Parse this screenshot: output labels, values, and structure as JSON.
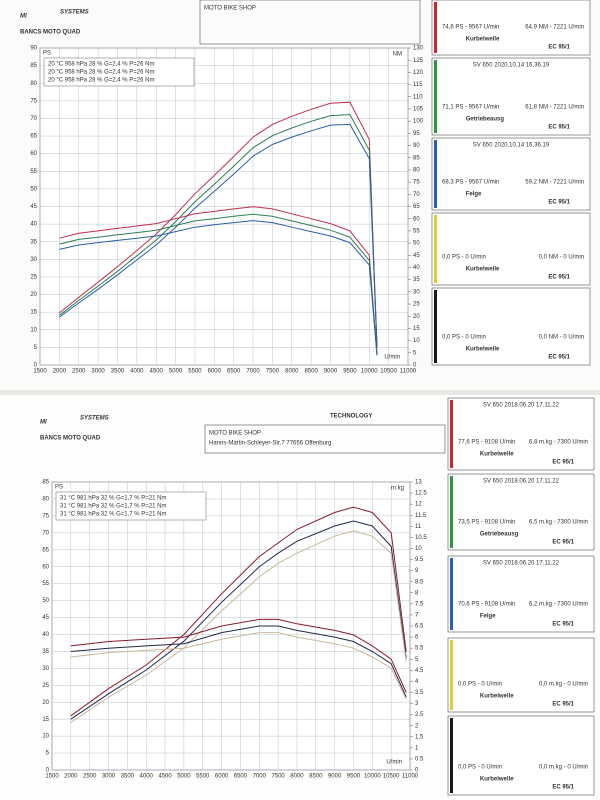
{
  "sheets": [
    {
      "logo": {
        "brand": "SYSTEMS",
        "tagline": "BANCS MOTO QUAD"
      },
      "header": {
        "shop": "MOTO BIKE SHOP"
      },
      "legend_rows": [
        "20 °C  958 hPa  28 %  G=2,4 %  P=26 Nm",
        "20 °C  958 hPa  28 %  G=2,4 %  P=26 Nm",
        "20 °C  958 hPa  28 %  G=2,4 %  P=26 Nm"
      ],
      "panels": [
        {
          "color": "#d0242c",
          "stats": [
            "74,6 PS - 9567 U/min",
            "64,9 NM - 7221 U/min"
          ],
          "position": "Kurbelwelle",
          "fuel": "EC 95/1"
        },
        {
          "color": "#2e9a3c",
          "title": "SV 650   2020.10.14 16.36.19",
          "stats": [
            "71,1 PS - 9567 U/min",
            "61,8 NM - 7221 U/min"
          ],
          "position": "Getriebeausg",
          "fuel": "EC 95/1"
        },
        {
          "color": "#2a5fb8",
          "title": "SV 650   2020.10.14 16.36.19",
          "stats": [
            "68,3 PS - 9567 U/min",
            "59,2 NM - 7221 U/min"
          ],
          "position": "Felge",
          "fuel": "EC 95/1"
        },
        {
          "color": "#e8c830",
          "stats": [
            "0,0 PS - 0 U/min",
            "0,0 NM - 0 U/min"
          ],
          "position": "Kurbelwelle",
          "fuel": "EC 95/1"
        },
        {
          "color": "#1a1a1a",
          "stats": [
            "0,0 PS - 0 U/min",
            "0,0 NM - 0 U/min"
          ],
          "position": "Kurbelwelle",
          "fuel": "EC 95/1"
        }
      ]
    },
    {
      "logo": {
        "brand": "SYSTEMS",
        "tagline": "BANCS MOTO QUAD",
        "badge": "TECHNOLOGY"
      },
      "header": {
        "shop": "MOTO BIKE SHOP",
        "address": "Hanns-Martin-Schleyer-Str.7  77656 Offenburg"
      },
      "legend_rows": [
        "31 °C  981 hPa  32 %  G=1,7 %  P=21 Nm",
        "31 °C  981 hPa  32 %  G=1,7 %  P=21 Nm",
        "31 °C  981 hPa  32 %  G=1,7 %  P=21 Nm"
      ],
      "panels": [
        {
          "color": "#d0242c",
          "title": "SV 650   2018.06.20 17.11.22",
          "stats": [
            "77,6 PS - 9108 U/min",
            "6,8 m.kg - 7300 U/min"
          ],
          "position": "Kurbelwelle",
          "fuel": "EC 95/1"
        },
        {
          "color": "#2e9a3c",
          "title": "SV 650   2018.06.20 17.11.22",
          "stats": [
            "73,5 PS - 9108 U/min",
            "6,5 m.kg - 7300 U/min"
          ],
          "position": "Getriebeausg",
          "fuel": "EC 95/1"
        },
        {
          "color": "#2a5fb8",
          "title": "SV 650   2018.06.20 17.11.22",
          "stats": [
            "70,6 PS - 9108 U/min",
            "6,2 m.kg - 7300 U/min"
          ],
          "position": "Felge",
          "fuel": "EC 95/1"
        },
        {
          "color": "#e8c830",
          "stats": [
            "0,0 PS - 0 U/min",
            "0,0 m.kg - 0 U/min"
          ],
          "position": "Kurbelwelle",
          "fuel": "EC 95/1"
        },
        {
          "color": "#1a1a1a",
          "stats": [
            "0,0 PS - 0 U/min",
            "0,0 m.kg - 0 U/min"
          ],
          "position": "Kurbelwelle",
          "fuel": "EC 95/1"
        }
      ]
    }
  ],
  "chart_data": [
    {
      "type": "line",
      "y_label": "PS",
      "y2_label": "NM",
      "x_label": "U/min",
      "grid": true,
      "x": [
        2000,
        2500,
        3000,
        3500,
        4000,
        4500,
        5000,
        5500,
        6000,
        6500,
        7000,
        7500,
        8000,
        8500,
        9000,
        9500,
        10000,
        10200
      ],
      "xlim": [
        1500,
        11000
      ],
      "xticks": [
        1500,
        2000,
        2500,
        3000,
        3500,
        4000,
        4500,
        5000,
        5500,
        6000,
        6500,
        7000,
        7500,
        8000,
        8500,
        9000,
        9500,
        10000,
        10500,
        11000
      ],
      "ylim": [
        0,
        90
      ],
      "yticks": [
        0,
        5,
        10,
        15,
        20,
        25,
        30,
        35,
        40,
        45,
        50,
        55,
        60,
        65,
        70,
        75,
        80,
        85,
        90
      ],
      "y2lim": [
        0,
        130
      ],
      "y2ticks": [
        0,
        5,
        10,
        15,
        20,
        25,
        30,
        35,
        40,
        45,
        50,
        55,
        60,
        65,
        70,
        75,
        80,
        85,
        90,
        95,
        100,
        105,
        110,
        115,
        120,
        125,
        130
      ],
      "series": [
        {
          "name": "Kurbelwelle PS",
          "color": "#c0304a",
          "values": [
            14.8,
            19.2,
            23.5,
            27.9,
            32.5,
            37.2,
            42.7,
            48.6,
            53.8,
            59.2,
            64.7,
            68.3,
            70.6,
            72.6,
            74.3,
            74.6,
            64,
            5
          ]
        },
        {
          "name": "Getriebeausg PS",
          "color": "#2e7d4f",
          "values": [
            14.1,
            18.3,
            22.4,
            26.6,
            31,
            35.5,
            40.7,
            46.3,
            51.3,
            56.4,
            61.7,
            65.1,
            67.3,
            69.2,
            70.8,
            71.1,
            61,
            5
          ]
        },
        {
          "name": "Felge PS",
          "color": "#2a5fa8",
          "values": [
            13.6,
            17.6,
            21.5,
            25.6,
            29.8,
            34.1,
            39.1,
            44.5,
            49.3,
            54.2,
            59.3,
            62.6,
            64.7,
            66.5,
            68.1,
            68.3,
            58.6,
            5
          ]
        },
        {
          "name": "Kurbelwelle NM",
          "color": "#c0304a",
          "axis": "y2",
          "values": [
            52,
            54,
            55,
            56,
            57,
            58,
            60,
            62,
            63,
            64,
            64.9,
            64,
            62,
            60,
            58,
            55,
            45,
            4
          ]
        },
        {
          "name": "Getriebeausg NM",
          "color": "#2e7d4f",
          "axis": "y2",
          "values": [
            49.6,
            51.5,
            52.4,
            53.4,
            54.3,
            55.3,
            57.2,
            59.1,
            60,
            61,
            61.8,
            61,
            59.1,
            57.2,
            55.3,
            52.4,
            42.9,
            4
          ]
        },
        {
          "name": "Felge NM",
          "color": "#2a5fa8",
          "axis": "y2",
          "values": [
            47.4,
            49.2,
            50.2,
            51.1,
            52,
            52.9,
            54.7,
            56.5,
            57.5,
            58.4,
            59.2,
            58.4,
            56.5,
            54.7,
            52.9,
            50.2,
            41,
            4
          ]
        }
      ]
    },
    {
      "type": "line",
      "y_label": "PS",
      "y2_label": "m.kg",
      "x_label": "U/min",
      "grid": true,
      "x": [
        2000,
        3000,
        4000,
        5000,
        6000,
        7000,
        7500,
        8000,
        9000,
        9500,
        10000,
        10500,
        10900
      ],
      "xlim": [
        1500,
        11000
      ],
      "xticks": [
        1500,
        2000,
        2500,
        3000,
        3500,
        4000,
        4500,
        5000,
        5500,
        6000,
        6500,
        7000,
        7500,
        8000,
        8500,
        9000,
        9500,
        10000,
        10500,
        11000
      ],
      "ylim": [
        0,
        85
      ],
      "yticks": [
        0,
        5,
        10,
        15,
        20,
        25,
        30,
        35,
        40,
        45,
        50,
        55,
        60,
        65,
        70,
        75,
        80,
        85
      ],
      "y2lim": [
        0,
        13
      ],
      "y2ticks": [
        0,
        0.5,
        1,
        1.5,
        2,
        2.5,
        3,
        3.5,
        4,
        4.5,
        5,
        5.5,
        6,
        6.5,
        7,
        7.5,
        8,
        8.5,
        9,
        9.5,
        10,
        10.5,
        11,
        11.5,
        12,
        12.5,
        13
      ],
      "series": [
        {
          "name": "Kurbelwelle PS",
          "color": "#8b1a2b",
          "values": [
            16,
            24,
            31,
            40,
            52,
            63,
            67,
            71,
            76,
            77.6,
            76,
            70,
            35
          ]
        },
        {
          "name": "Getriebeausg PS",
          "color": "#1f2a4a",
          "values": [
            15,
            22.5,
            29.5,
            38,
            49.5,
            60,
            64,
            67.5,
            72,
            73.5,
            72,
            66,
            33
          ]
        },
        {
          "name": "Felge PS",
          "color": "#c9b79a",
          "values": [
            14,
            21.5,
            28,
            36,
            47,
            57,
            61,
            64,
            69,
            70.6,
            69,
            64,
            32
          ]
        },
        {
          "name": "Kurbelwelle m.kg",
          "color": "#8b1a2b",
          "axis": "y2",
          "values": [
            5.6,
            5.8,
            5.9,
            6,
            6.5,
            6.8,
            6.8,
            6.6,
            6.3,
            6.1,
            5.6,
            5,
            3.5
          ]
        },
        {
          "name": "Getriebeausg m.kg",
          "color": "#1f2a4a",
          "axis": "y2",
          "values": [
            5.35,
            5.5,
            5.6,
            5.7,
            6.2,
            6.5,
            6.5,
            6.3,
            6,
            5.8,
            5.35,
            4.8,
            3.3
          ]
        },
        {
          "name": "Felge m.kg",
          "color": "#c9b79a",
          "axis": "y2",
          "values": [
            5.1,
            5.3,
            5.4,
            5.5,
            5.9,
            6.2,
            6.2,
            6,
            5.7,
            5.5,
            5.1,
            4.6,
            3.2
          ]
        }
      ]
    }
  ]
}
